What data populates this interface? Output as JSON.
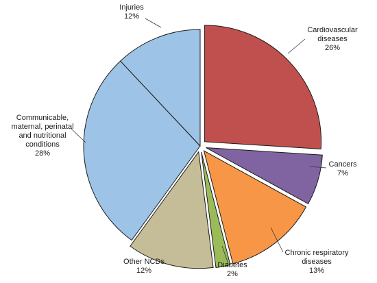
{
  "chart_data": {
    "type": "pie",
    "title": "",
    "slices": [
      {
        "label_lines": [
          "Cardiovascular",
          "diseases"
        ],
        "value": 26,
        "value_label": "26%",
        "color": "#c0504d"
      },
      {
        "label_lines": [
          "Cancers"
        ],
        "value": 7,
        "value_label": "7%",
        "color": "#8064a2"
      },
      {
        "label_lines": [
          "Chronic respiratory",
          "diseases"
        ],
        "value": 13,
        "value_label": "13%",
        "color": "#f79646"
      },
      {
        "label_lines": [
          "Diabetes"
        ],
        "value": 2,
        "value_label": "2%",
        "color": "#9bbb59"
      },
      {
        "label_lines": [
          "Other NCDs"
        ],
        "value": 12,
        "value_label": "12%",
        "color": "#c4bd97"
      },
      {
        "label_lines": [
          "Communicable,",
          "maternal, perinatal",
          "and nutritional",
          "conditions"
        ],
        "value": 28,
        "value_label": "28%",
        "color": "#9dc3e6"
      },
      {
        "label_lines": [
          "Injuries"
        ],
        "value": 12,
        "value_label": "12%",
        "color": "#9dc3e6"
      }
    ],
    "exploded_labels": [
      "Cardiovascular",
      "Cancers",
      "Chronic respiratory",
      "Diabetes",
      "Other NCDs"
    ],
    "legend": "none",
    "leader_lines": true
  }
}
